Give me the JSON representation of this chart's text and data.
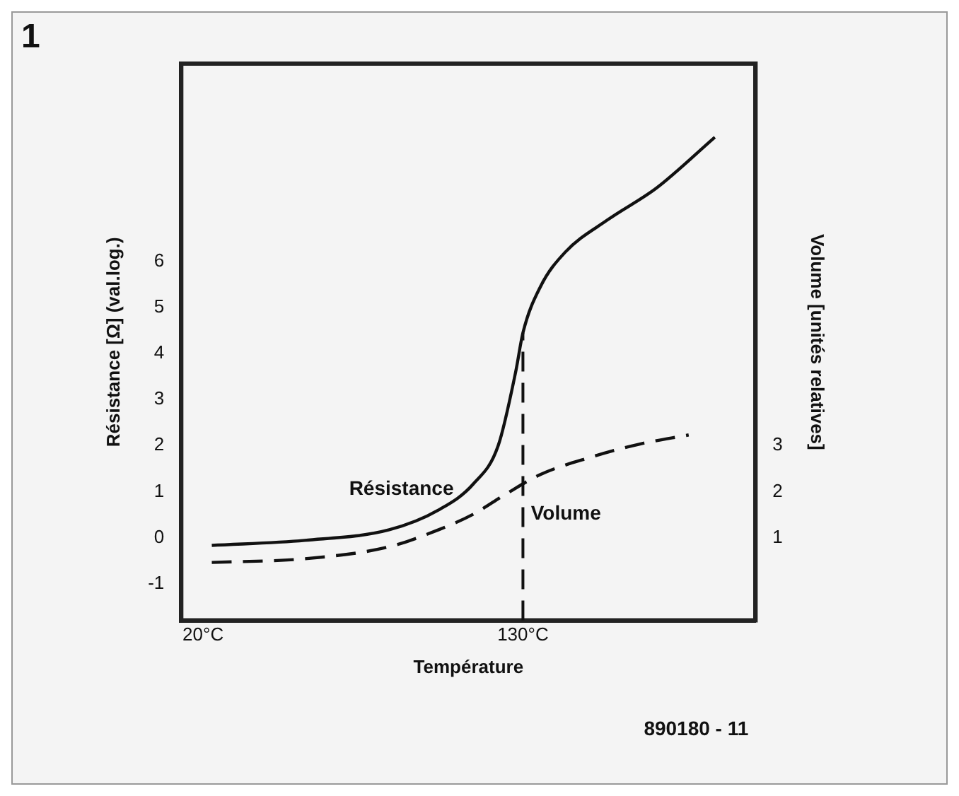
{
  "chart_data": {
    "type": "line",
    "xlabel": "Température",
    "ylabel": "Résistance [Ω] (val.log.)",
    "y2label": "Volume [unités relatives]",
    "annotations": [
      "1",
      "890180 - 11"
    ],
    "xlim": [
      12.5,
      210
    ],
    "xticks": [
      {
        "value": 20,
        "label": "20°C"
      },
      {
        "value": 130,
        "label": "130°C"
      }
    ],
    "ylim": [
      -1.8,
      10.3
    ],
    "yticks": [
      -1,
      0,
      1,
      2,
      3,
      4,
      5,
      6
    ],
    "y2lim": [
      -0.8,
      11.3
    ],
    "y2ticks": [
      1,
      2,
      3
    ],
    "grid": false,
    "legend": false,
    "marker": "none",
    "ref_lines": [
      {
        "axis": "x",
        "value": 130,
        "line_style": "dashed",
        "color": "#111111"
      }
    ],
    "series": [
      {
        "name": "Résistance",
        "color": "#111111",
        "line_style": "solid",
        "x": [
          23,
          55,
          84,
          101,
          113,
          121.5,
          127.5,
          130,
          136,
          144.5,
          159,
          176,
          196
        ],
        "values": [
          -0.17,
          -0.06,
          0.17,
          0.6,
          1.17,
          2.0,
          3.6,
          4.45,
          5.45,
          6.2,
          6.9,
          7.6,
          8.7
        ]
      },
      {
        "name": "Volume",
        "color": "#111111",
        "line_style": "dashed",
        "axis": "y2",
        "x": [
          23,
          55,
          84,
          101,
          113,
          124,
          136,
          153,
          170,
          187
        ],
        "values": [
          0.46,
          0.54,
          0.8,
          1.17,
          1.51,
          1.94,
          2.37,
          2.74,
          3.03,
          3.23
        ]
      }
    ]
  }
}
